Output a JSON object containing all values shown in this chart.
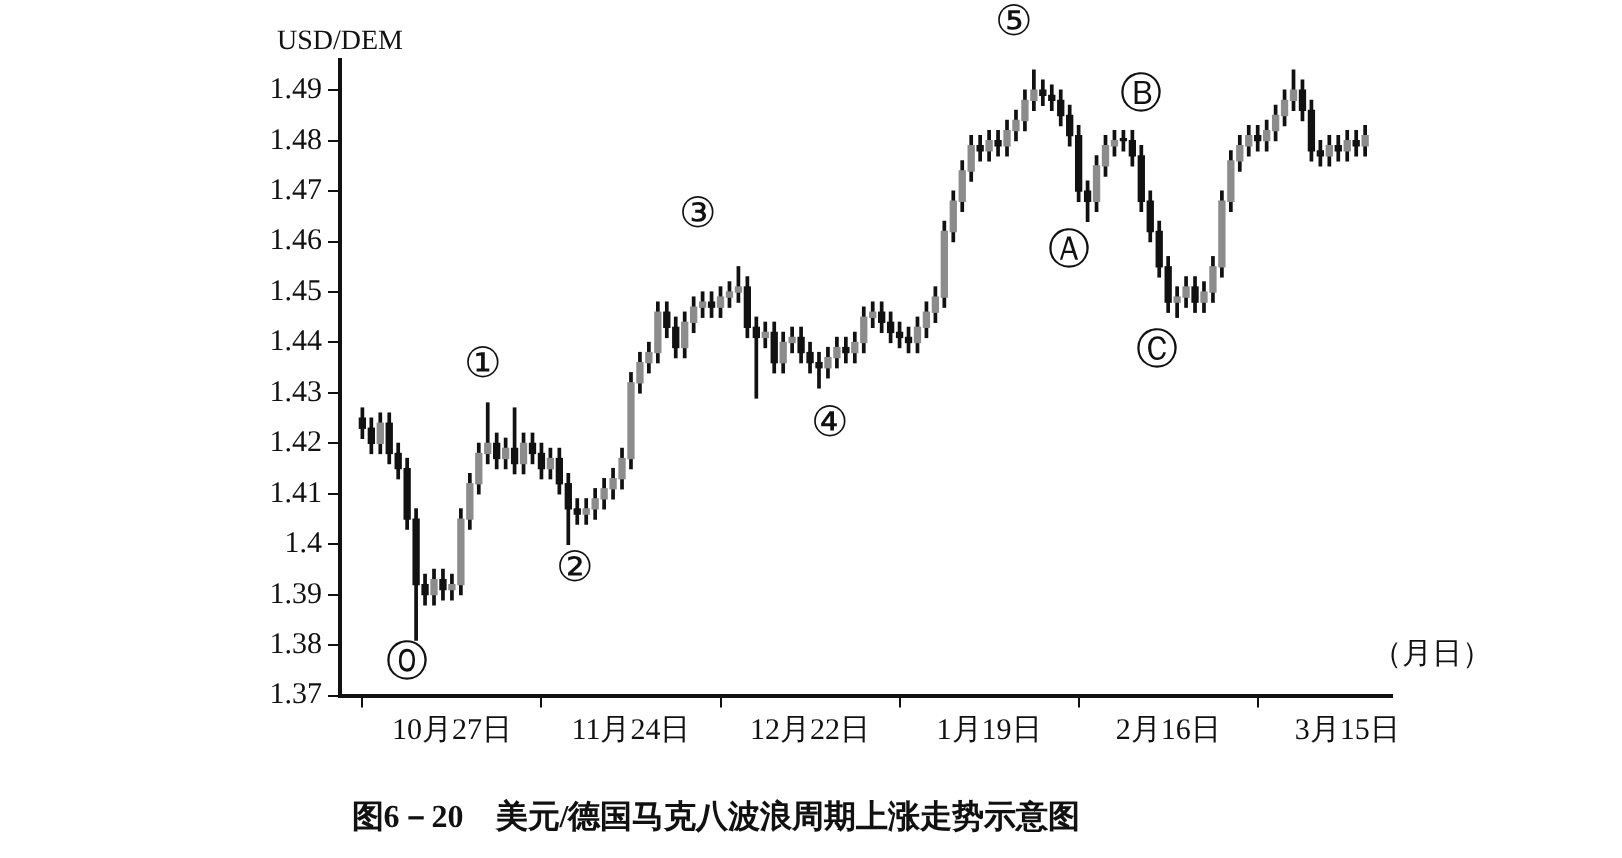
{
  "chart_data": {
    "type": "candlestick",
    "title": "图6－20　美元/德国马克八波浪周期上涨走势示意图",
    "ylabel": "USD/DEM",
    "xlabel": "（月日）",
    "categories": [
      null,
      null,
      null,
      null,
      null,
      null,
      null,
      null,
      null,
      null,
      "10月27日",
      null,
      null,
      null,
      null,
      null,
      null,
      null,
      null,
      null,
      null,
      null,
      null,
      null,
      null,
      null,
      null,
      null,
      null,
      null,
      "11月24日",
      null,
      null,
      null,
      null,
      null,
      null,
      null,
      null,
      null,
      null,
      null,
      null,
      null,
      null,
      null,
      null,
      null,
      null,
      null,
      "12月22日",
      null,
      null,
      null,
      null,
      null,
      null,
      null,
      null,
      null,
      null,
      null,
      null,
      null,
      null,
      null,
      null,
      null,
      null,
      null,
      "1月19日",
      null,
      null,
      null,
      null,
      null,
      null,
      null,
      null,
      null,
      null,
      null,
      null,
      null,
      null,
      null,
      null,
      null,
      null,
      null,
      "2月16日",
      null,
      null,
      null,
      null,
      null,
      null,
      null,
      null,
      null,
      null,
      null,
      null,
      null,
      null,
      null,
      null,
      null,
      null,
      null,
      "3月15日",
      null,
      null
    ],
    "ohlc": [
      [
        1.425,
        1.427,
        1.421,
        1.423
      ],
      [
        1.423,
        1.425,
        1.418,
        1.42
      ],
      [
        1.42,
        1.426,
        1.418,
        1.424
      ],
      [
        1.424,
        1.426,
        1.416,
        1.418
      ],
      [
        1.418,
        1.42,
        1.413,
        1.415
      ],
      [
        1.415,
        1.417,
        1.403,
        1.405
      ],
      [
        1.405,
        1.407,
        1.381,
        1.392
      ],
      [
        1.392,
        1.394,
        1.388,
        1.39
      ],
      [
        1.39,
        1.395,
        1.388,
        1.393
      ],
      [
        1.393,
        1.395,
        1.389,
        1.391
      ],
      [
        1.391,
        1.394,
        1.389,
        1.392
      ],
      [
        1.392,
        1.407,
        1.39,
        1.405
      ],
      [
        1.405,
        1.414,
        1.403,
        1.412
      ],
      [
        1.412,
        1.42,
        1.41,
        1.418
      ],
      [
        1.418,
        1.428,
        1.416,
        1.42
      ],
      [
        1.42,
        1.422,
        1.415,
        1.417
      ],
      [
        1.417,
        1.421,
        1.415,
        1.419
      ],
      [
        1.419,
        1.427,
        1.414,
        1.416
      ],
      [
        1.416,
        1.422,
        1.414,
        1.42
      ],
      [
        1.42,
        1.422,
        1.416,
        1.418
      ],
      [
        1.418,
        1.42,
        1.413,
        1.415
      ],
      [
        1.415,
        1.419,
        1.413,
        1.417
      ],
      [
        1.417,
        1.419,
        1.41,
        1.412
      ],
      [
        1.412,
        1.414,
        1.4,
        1.407
      ],
      [
        1.407,
        1.409,
        1.404,
        1.406
      ],
      [
        1.406,
        1.409,
        1.404,
        1.407
      ],
      [
        1.407,
        1.411,
        1.405,
        1.409
      ],
      [
        1.409,
        1.413,
        1.407,
        1.411
      ],
      [
        1.411,
        1.415,
        1.409,
        1.413
      ],
      [
        1.413,
        1.419,
        1.411,
        1.417
      ],
      [
        1.417,
        1.434,
        1.415,
        1.432
      ],
      [
        1.432,
        1.438,
        1.43,
        1.436
      ],
      [
        1.436,
        1.44,
        1.434,
        1.438
      ],
      [
        1.438,
        1.448,
        1.436,
        1.446
      ],
      [
        1.446,
        1.448,
        1.441,
        1.443
      ],
      [
        1.443,
        1.445,
        1.437,
        1.439
      ],
      [
        1.439,
        1.446,
        1.437,
        1.444
      ],
      [
        1.444,
        1.449,
        1.442,
        1.447
      ],
      [
        1.447,
        1.45,
        1.445,
        1.448
      ],
      [
        1.448,
        1.45,
        1.445,
        1.447
      ],
      [
        1.447,
        1.451,
        1.445,
        1.449
      ],
      [
        1.449,
        1.452,
        1.447,
        1.45
      ],
      [
        1.45,
        1.455,
        1.448,
        1.451
      ],
      [
        1.451,
        1.453,
        1.441,
        1.443
      ],
      [
        1.443,
        1.445,
        1.429,
        1.441
      ],
      [
        1.441,
        1.444,
        1.439,
        1.442
      ],
      [
        1.442,
        1.444,
        1.434,
        1.436
      ],
      [
        1.436,
        1.442,
        1.434,
        1.44
      ],
      [
        1.44,
        1.443,
        1.438,
        1.441
      ],
      [
        1.441,
        1.443,
        1.436,
        1.438
      ],
      [
        1.438,
        1.44,
        1.434,
        1.436
      ],
      [
        1.436,
        1.438,
        1.431,
        1.435
      ],
      [
        1.435,
        1.439,
        1.433,
        1.437
      ],
      [
        1.437,
        1.441,
        1.435,
        1.439
      ],
      [
        1.439,
        1.441,
        1.436,
        1.438
      ],
      [
        1.438,
        1.442,
        1.436,
        1.44
      ],
      [
        1.44,
        1.447,
        1.438,
        1.445
      ],
      [
        1.445,
        1.448,
        1.443,
        1.446
      ],
      [
        1.446,
        1.448,
        1.442,
        1.444
      ],
      [
        1.444,
        1.446,
        1.44,
        1.442
      ],
      [
        1.442,
        1.444,
        1.439,
        1.441
      ],
      [
        1.441,
        1.443,
        1.438,
        1.44
      ],
      [
        1.44,
        1.445,
        1.438,
        1.443
      ],
      [
        1.443,
        1.448,
        1.441,
        1.446
      ],
      [
        1.446,
        1.451,
        1.444,
        1.449
      ],
      [
        1.449,
        1.464,
        1.447,
        1.462
      ],
      [
        1.462,
        1.47,
        1.46,
        1.468
      ],
      [
        1.468,
        1.476,
        1.466,
        1.474
      ],
      [
        1.474,
        1.481,
        1.472,
        1.479
      ],
      [
        1.479,
        1.481,
        1.476,
        1.478
      ],
      [
        1.478,
        1.482,
        1.476,
        1.48
      ],
      [
        1.48,
        1.482,
        1.477,
        1.479
      ],
      [
        1.479,
        1.484,
        1.477,
        1.482
      ],
      [
        1.482,
        1.486,
        1.48,
        1.484
      ],
      [
        1.484,
        1.49,
        1.482,
        1.488
      ],
      [
        1.488,
        1.494,
        1.486,
        1.49
      ],
      [
        1.49,
        1.492,
        1.487,
        1.489
      ],
      [
        1.489,
        1.491,
        1.486,
        1.488
      ],
      [
        1.488,
        1.49,
        1.483,
        1.485
      ],
      [
        1.485,
        1.487,
        1.479,
        1.481
      ],
      [
        1.481,
        1.483,
        1.468,
        1.47
      ],
      [
        1.47,
        1.472,
        1.464,
        1.468
      ],
      [
        1.468,
        1.477,
        1.466,
        1.475
      ],
      [
        1.475,
        1.481,
        1.473,
        1.479
      ],
      [
        1.479,
        1.482,
        1.477,
        1.48
      ],
      [
        1.48,
        1.482,
        1.478,
        1.48
      ],
      [
        1.48,
        1.482,
        1.475,
        1.477
      ],
      [
        1.477,
        1.479,
        1.466,
        1.468
      ],
      [
        1.468,
        1.47,
        1.46,
        1.462
      ],
      [
        1.462,
        1.464,
        1.453,
        1.455
      ],
      [
        1.455,
        1.457,
        1.446,
        1.448
      ],
      [
        1.448,
        1.451,
        1.445,
        1.449
      ],
      [
        1.449,
        1.453,
        1.447,
        1.451
      ],
      [
        1.451,
        1.453,
        1.446,
        1.448
      ],
      [
        1.448,
        1.452,
        1.446,
        1.45
      ],
      [
        1.45,
        1.457,
        1.448,
        1.455
      ],
      [
        1.455,
        1.47,
        1.453,
        1.468
      ],
      [
        1.468,
        1.478,
        1.466,
        1.476
      ],
      [
        1.476,
        1.481,
        1.474,
        1.479
      ],
      [
        1.479,
        1.483,
        1.477,
        1.481
      ],
      [
        1.481,
        1.483,
        1.478,
        1.48
      ],
      [
        1.48,
        1.484,
        1.478,
        1.482
      ],
      [
        1.482,
        1.487,
        1.48,
        1.485
      ],
      [
        1.485,
        1.49,
        1.483,
        1.488
      ],
      [
        1.488,
        1.494,
        1.486,
        1.49
      ],
      [
        1.49,
        1.492,
        1.484,
        1.486
      ],
      [
        1.486,
        1.488,
        1.476,
        1.478
      ],
      [
        1.478,
        1.48,
        1.475,
        1.477
      ],
      [
        1.477,
        1.481,
        1.475,
        1.479
      ],
      [
        1.479,
        1.481,
        1.476,
        1.478
      ],
      [
        1.478,
        1.482,
        1.476,
        1.48
      ],
      [
        1.48,
        1.482,
        1.477,
        1.479
      ],
      [
        1.479,
        1.483,
        1.477,
        1.481
      ]
    ],
    "ylim": [
      1.37,
      1.496
    ],
    "yticks": [
      1.37,
      1.38,
      1.39,
      1.4,
      1.41,
      1.42,
      1.43,
      1.44,
      1.45,
      1.46,
      1.47,
      1.48,
      1.49
    ],
    "grid": false,
    "legend": false,
    "annotations": [
      "⓪",
      "①",
      "②",
      "③",
      "④",
      "⑤",
      "Ⓐ",
      "Ⓑ",
      "Ⓒ"
    ]
  }
}
